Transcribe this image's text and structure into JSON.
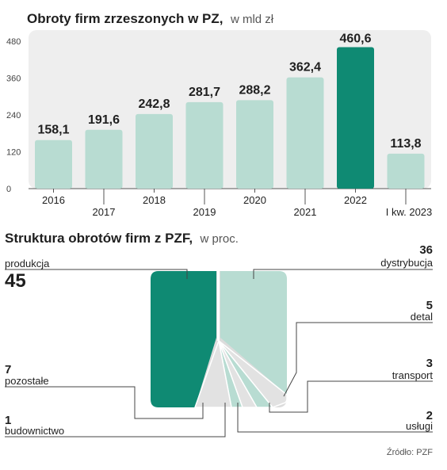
{
  "chart_data": [
    {
      "type": "bar",
      "title": "Obroty firm zrzeszonych w PZ,",
      "subtitle": "w mld zł",
      "categories": [
        "2016",
        "2017",
        "2018",
        "2019",
        "2020",
        "2021",
        "2022",
        "I kw. 2023"
      ],
      "values": [
        158.1,
        191.6,
        242.8,
        281.7,
        288.2,
        362.4,
        460.6,
        113.8
      ],
      "value_labels": [
        "158,1",
        "191,6",
        "242,8",
        "281,7",
        "288,2",
        "362,4",
        "460,6",
        "113,8"
      ],
      "highlight_index": 6,
      "yticks": [
        "0",
        "120",
        "240",
        "360",
        "480"
      ],
      "ylim": [
        0,
        480
      ],
      "grid": false,
      "colors": {
        "bar": "#b8dcd2",
        "highlight": "#0f8a73",
        "panel": "#eeeeee"
      }
    },
    {
      "type": "treemap",
      "title": "Struktura obrotów firm z PZF,",
      "subtitle": "w proc.",
      "items": [
        {
          "name": "produkcja",
          "value": "45"
        },
        {
          "name": "dystrybucja",
          "value": "36"
        },
        {
          "name": "detal",
          "value": "5"
        },
        {
          "name": "transport",
          "value": "3"
        },
        {
          "name": "usługi",
          "value": "2"
        },
        {
          "name": "budownictwo",
          "value": "1"
        },
        {
          "name": "pozostałe",
          "value": "7"
        }
      ],
      "source": "Źródło: PZF",
      "colors": {
        "dark": "#0f8a73",
        "light": "#b8dcd2",
        "grey": "#dcdcdc"
      }
    }
  ]
}
